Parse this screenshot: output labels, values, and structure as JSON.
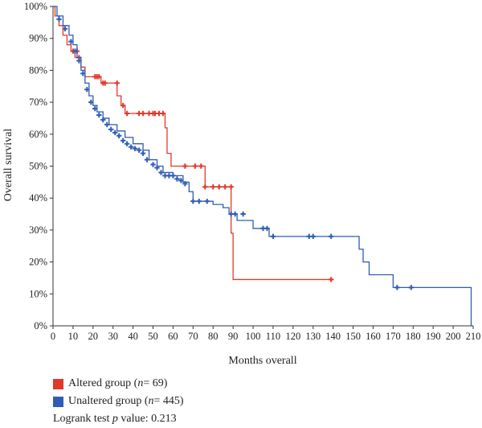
{
  "chart_data": {
    "type": "line",
    "chart_kind": "kaplan-meier step",
    "xlabel": "Months overall",
    "ylabel": "Overall survival",
    "xlim": [
      0,
      210
    ],
    "ylim": [
      0,
      100
    ],
    "xticks": [
      "0",
      "10",
      "20",
      "30",
      "40",
      "50",
      "60",
      "70",
      "80",
      "90",
      "100",
      "110",
      "120",
      "130",
      "140",
      "150",
      "160",
      "170",
      "180",
      "190",
      "200",
      "210"
    ],
    "yticks": [
      "0%",
      "10%",
      "20%",
      "30%",
      "40%",
      "50%",
      "60%",
      "70%",
      "80%",
      "90%",
      "100%"
    ],
    "grid": false,
    "series": [
      {
        "name": "Altered group",
        "n": "69",
        "color": "#e0392b",
        "x": [
          0,
          1,
          3,
          5,
          7,
          9,
          11,
          14,
          16,
          20,
          24,
          28,
          32,
          34,
          36,
          56,
          57,
          59,
          76,
          89,
          90,
          139
        ],
        "y": [
          100,
          97,
          94,
          91,
          88,
          86,
          84,
          81,
          78,
          78,
          76,
          76,
          72,
          69,
          66.5,
          62,
          54,
          50,
          43.5,
          29,
          14.5,
          14.5
        ],
        "censor_x": [
          10,
          12,
          13,
          21,
          22,
          23,
          25,
          26,
          32,
          35,
          37,
          43,
          45,
          48,
          50,
          51,
          53,
          55,
          66,
          71,
          74,
          76,
          80,
          83,
          86,
          89,
          139
        ],
        "censor_y": [
          86,
          86,
          84,
          78,
          78,
          78,
          76,
          76,
          76,
          69,
          66.5,
          66.5,
          66.5,
          66.5,
          66.5,
          66.5,
          66.5,
          66.5,
          50,
          50,
          50,
          43.5,
          43.5,
          43.5,
          43.5,
          43.5,
          14.5
        ]
      },
      {
        "name": "Unaltered group",
        "n": "445",
        "color": "#2d5db5",
        "x": [
          0,
          2,
          5,
          8,
          10,
          12,
          14,
          16,
          18,
          20,
          22,
          25,
          28,
          32,
          36,
          40,
          45,
          48,
          52,
          55,
          60,
          65,
          68,
          70,
          75,
          80,
          85,
          88,
          92,
          100,
          108,
          112,
          130,
          140,
          150,
          153,
          155,
          158,
          168,
          170,
          180,
          209
        ],
        "y": [
          100,
          97,
          94,
          91,
          88,
          84,
          80,
          76,
          72,
          69,
          67,
          65,
          63,
          61,
          59,
          57,
          55,
          52,
          50,
          48,
          47,
          45,
          42,
          39,
          39,
          38,
          37,
          35,
          33,
          30.5,
          28,
          28,
          28,
          28,
          28,
          24,
          20,
          16,
          16,
          12,
          12,
          0
        ],
        "censor_x": [
          3,
          6,
          9,
          11,
          13,
          15,
          17,
          19,
          21,
          23,
          25,
          27,
          29,
          31,
          33,
          35,
          37,
          39,
          41,
          43,
          45,
          47,
          50,
          52,
          54,
          56,
          58,
          60,
          62,
          64,
          66,
          70,
          73,
          77,
          89,
          91,
          95,
          105,
          107,
          110,
          128,
          130,
          139,
          172,
          179
        ],
        "censor_y": [
          96,
          93,
          89,
          86,
          83,
          79,
          74,
          70,
          68,
          66,
          64.5,
          63,
          61.5,
          60.5,
          59.5,
          58,
          57,
          56,
          55.5,
          55,
          54,
          52,
          50.5,
          49.5,
          48,
          47,
          47,
          47,
          46,
          45.5,
          44.5,
          39,
          39,
          39,
          35,
          35,
          35,
          30.5,
          30.5,
          28,
          28,
          28,
          28,
          12,
          12
        ]
      }
    ]
  },
  "legend": {
    "altered_label": "Altered group (",
    "altered_n_var": "n",
    "altered_n_eq": " = 69)",
    "unaltered_label": "Unaltered group (",
    "unaltered_n_var": "n",
    "unaltered_n_eq": " = 445)",
    "altered_color": "#e0392b",
    "unaltered_color": "#2d5db5"
  },
  "logrank": {
    "prefix": "Logrank test ",
    "p": "p",
    "suffix": " value: 0.213"
  }
}
